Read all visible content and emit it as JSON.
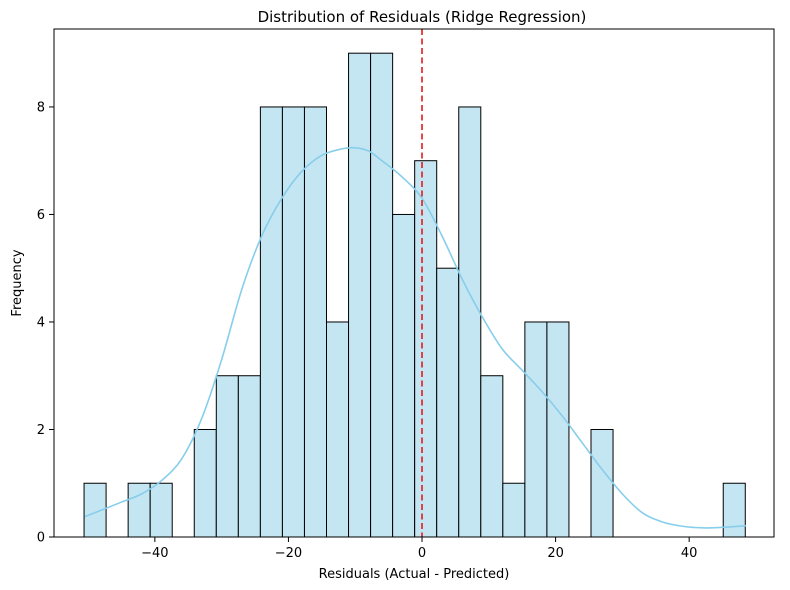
{
  "chart_data": {
    "type": "bar",
    "subtype": "histogram-with-kde",
    "title": "Distribution of Residuals (Ridge Regression)",
    "xlabel": "Residuals (Actual - Predicted)",
    "ylabel": "Frequency",
    "xlim": [
      -55.1,
      52.7
    ],
    "ylim": [
      0,
      9.45
    ],
    "x_ticks": [
      -40,
      -20,
      0,
      20,
      40
    ],
    "y_ticks": [
      0,
      2,
      4,
      6,
      8
    ],
    "bin_start": -50.6,
    "bin_width": 3.3,
    "counts": [
      1,
      0,
      1,
      1,
      0,
      2,
      3,
      3,
      8,
      8,
      8,
      4,
      9,
      9,
      6,
      7,
      5,
      8,
      3,
      1,
      4,
      4,
      0,
      2,
      0,
      0,
      0,
      0,
      0,
      1
    ],
    "bar_fill": "#c4e5f2",
    "bar_edge": "#000000",
    "kde": {
      "color": "#87ceeb",
      "x": [
        -50.5,
        -48,
        -45,
        -42,
        -39,
        -36,
        -33,
        -30,
        -27,
        -24,
        -21,
        -18,
        -15,
        -12,
        -10,
        -8,
        -6,
        -3,
        0,
        3,
        6,
        9,
        12,
        15,
        18,
        21,
        24,
        27,
        30,
        33,
        36,
        39,
        42,
        45,
        48.5
      ],
      "y": [
        0.38,
        0.5,
        0.65,
        0.8,
        1.05,
        1.45,
        2.2,
        3.3,
        4.6,
        5.6,
        6.3,
        6.8,
        7.1,
        7.22,
        7.24,
        7.18,
        7.0,
        6.7,
        6.3,
        5.6,
        4.8,
        4.1,
        3.5,
        3.1,
        2.7,
        2.25,
        1.75,
        1.25,
        0.8,
        0.45,
        0.28,
        0.2,
        0.17,
        0.18,
        0.21
      ]
    },
    "vline": {
      "x": 0,
      "color": "#e31a1c",
      "style": "dashed"
    },
    "grid": false,
    "legend": "none"
  }
}
